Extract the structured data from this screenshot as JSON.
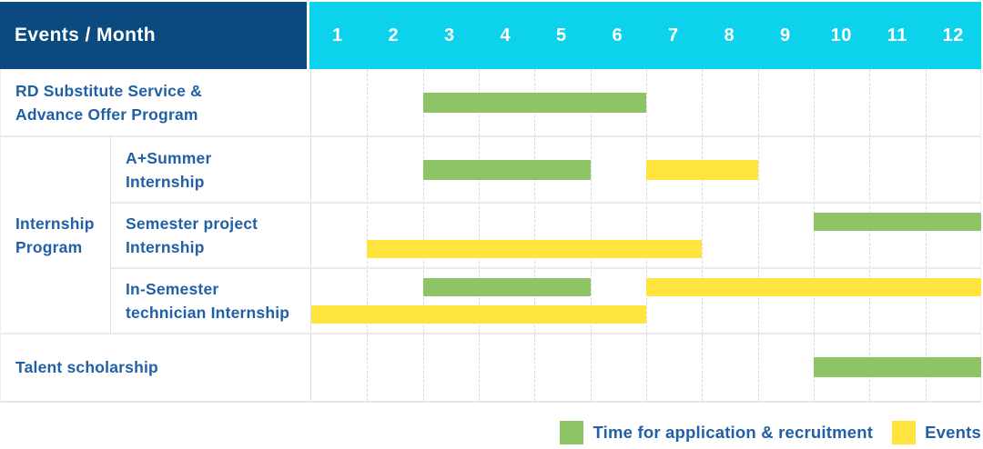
{
  "header": {
    "corner_label": "Events / Month",
    "months": [
      "1",
      "2",
      "3",
      "4",
      "5",
      "6",
      "7",
      "8",
      "9",
      "10",
      "11",
      "12"
    ]
  },
  "group_cell": {
    "label": "Internship Program",
    "label_lines": [
      "Internship",
      "Program"
    ]
  },
  "chart_data": {
    "type": "gantt",
    "unit": "month",
    "x_range": [
      1,
      12
    ],
    "grid": "dashed-vertical",
    "legend_position": "bottom-right",
    "rows": [
      {
        "label": "RD Substitute Service & Advance Offer Program",
        "label_lines": [
          "RD Substitute Service &",
          "Advance Offer Program"
        ],
        "group": "",
        "bars": [
          {
            "series": "application",
            "start_month": 3,
            "end_month": 6,
            "lane": "middle"
          }
        ]
      },
      {
        "label": "A+Summer Internship",
        "label_lines": [
          "A+Summer",
          "Internship"
        ],
        "group": "Internship Program",
        "bars": [
          {
            "series": "application",
            "start_month": 3,
            "end_month": 5,
            "lane": "middle"
          },
          {
            "series": "events",
            "start_month": 7,
            "end_month": 8,
            "lane": "middle"
          }
        ]
      },
      {
        "label": "Semester project Internship",
        "label_lines": [
          "Semester project",
          "Internship"
        ],
        "group": "Internship Program",
        "bars": [
          {
            "series": "application",
            "start_month": 10,
            "end_month": 12,
            "lane": "upper"
          },
          {
            "series": "events",
            "start_month": 2,
            "end_month": 7,
            "lane": "lower"
          }
        ]
      },
      {
        "label": "In-Semester technician Internship",
        "label_lines": [
          "In-Semester",
          "technician Internship"
        ],
        "group": "Internship Program",
        "bars": [
          {
            "series": "application",
            "start_month": 3,
            "end_month": 5,
            "lane": "upper"
          },
          {
            "series": "events",
            "start_month": 7,
            "end_month": 12,
            "lane": "upper"
          },
          {
            "series": "events",
            "start_month": 1,
            "end_month": 6,
            "lane": "lower"
          }
        ]
      },
      {
        "label": "Talent scholarship",
        "label_lines": [
          "Talent scholarship"
        ],
        "group": "",
        "bars": [
          {
            "series": "application",
            "start_month": 10,
            "end_month": 12,
            "lane": "middle"
          }
        ]
      }
    ],
    "series": {
      "application": {
        "label": "Time for application & recruitment",
        "color": "#8dc465"
      },
      "events": {
        "label": "Events",
        "color": "#ffe43d"
      }
    }
  },
  "legend": {
    "items": [
      {
        "series": "application",
        "label": "Time for application & recruitment"
      },
      {
        "series": "events",
        "label": "Events"
      }
    ]
  },
  "colors": {
    "corner_header_bg": "#0b4a7e",
    "month_header_bg": "#0cd2ec",
    "application_bar": "#8dc465",
    "events_bar": "#ffe43d",
    "label_text": "#2160a6",
    "grid_line": "#d9d9d9"
  }
}
